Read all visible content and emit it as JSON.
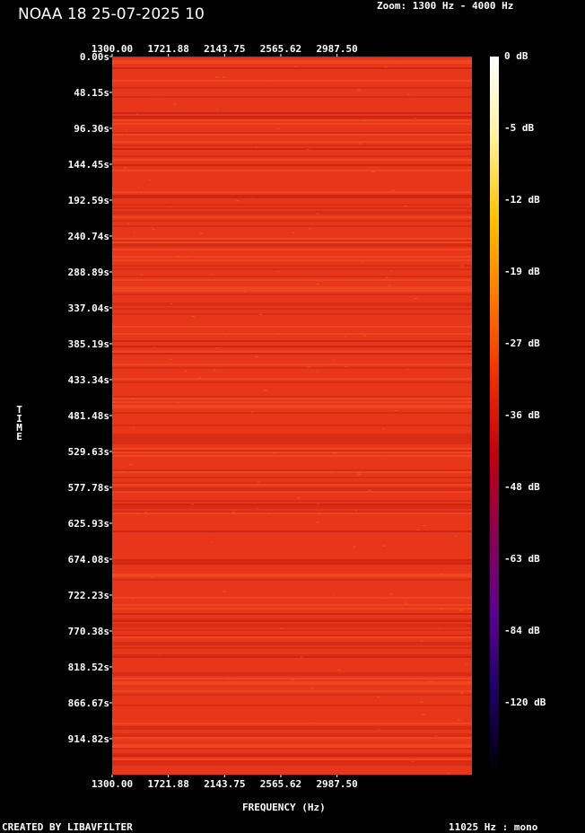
{
  "header": {
    "title": "NOAA 18 25-07-2025 10",
    "zoom": "Zoom: 1300 Hz - 4000 Hz"
  },
  "footer": {
    "created_by": "CREATED BY LIBAVFILTER",
    "sample_info": "11025 Hz : mono"
  },
  "chart_data": {
    "type": "heatmap",
    "title": "NOAA 18 25-07-2025 10",
    "xlabel": "FREQUENCY (Hz)",
    "ylabel": "TIME",
    "x_range": [
      1300,
      4000
    ],
    "y_range": [
      0,
      962.97
    ],
    "x_ticks": [
      "1300.00",
      "1721.88",
      "2143.75",
      "2565.62",
      "2987.50"
    ],
    "y_ticks": [
      "0.00s",
      "48.15s",
      "96.30s",
      "144.45s",
      "192.59s",
      "240.74s",
      "288.89s",
      "337.04s",
      "385.19s",
      "433.34s",
      "481.48s",
      "529.63s",
      "577.78s",
      "625.93s",
      "674.08s",
      "722.23s",
      "770.38s",
      "818.52s",
      "866.67s",
      "914.82s"
    ],
    "colorbar_ticks": [
      "0 dB",
      "-5 dB",
      "-12 dB",
      "-19 dB",
      "-27 dB",
      "-36 dB",
      "-48 dB",
      "-63 dB",
      "-84 dB",
      "-120 dB"
    ],
    "approx_level_db": -23,
    "colors": {
      "background": "#000000",
      "plot_base": "#e8361a",
      "colorbar_stops": [
        "#ffffff",
        "#fff3a0",
        "#ffc400",
        "#ff7a00",
        "#f03000",
        "#c00010",
        "#880050",
        "#5a0090",
        "#1a0060",
        "#000000"
      ]
    }
  }
}
